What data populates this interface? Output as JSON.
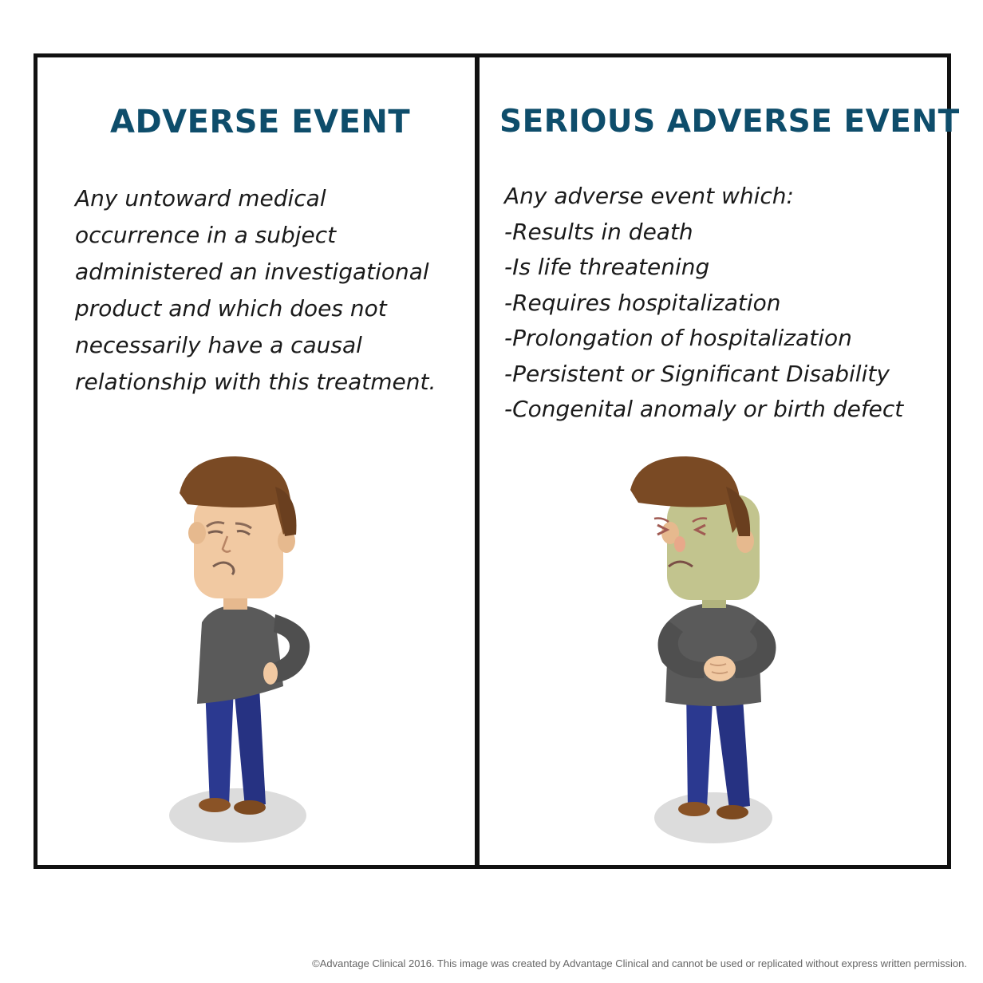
{
  "left_panel": {
    "heading": "ADVERSE EVENT",
    "lines": [
      "Any untoward medical",
      "occurrence in a subject",
      "administered an investigational",
      "product and which does not",
      "necessarily have a causal",
      "relationship with this treatment."
    ]
  },
  "right_panel": {
    "heading": "SERIOUS ADVERSE EVENT",
    "lines": [
      "Any adverse event which:",
      "-Results in death",
      "-Is life threatening",
      "-Requires hospitalization",
      "-Prolongation of hospitalization",
      "-Persistent or Significant Disability",
      "-Congenital anomaly or birth defect"
    ]
  },
  "copyright": "©Advantage Clinical 2016. This image was created by Advantage Clinical and cannot be used or replicated without express written permission.",
  "colors": {
    "heading": "#0e4d6b",
    "hair": "#7a4a24",
    "skin": "#f1c9a2",
    "sick_skin": "#c2c48e",
    "sweater": "#5a5a5a",
    "pants": "#2b3990",
    "shoes": "#8a5326",
    "shadow": "#dcdcdc"
  }
}
